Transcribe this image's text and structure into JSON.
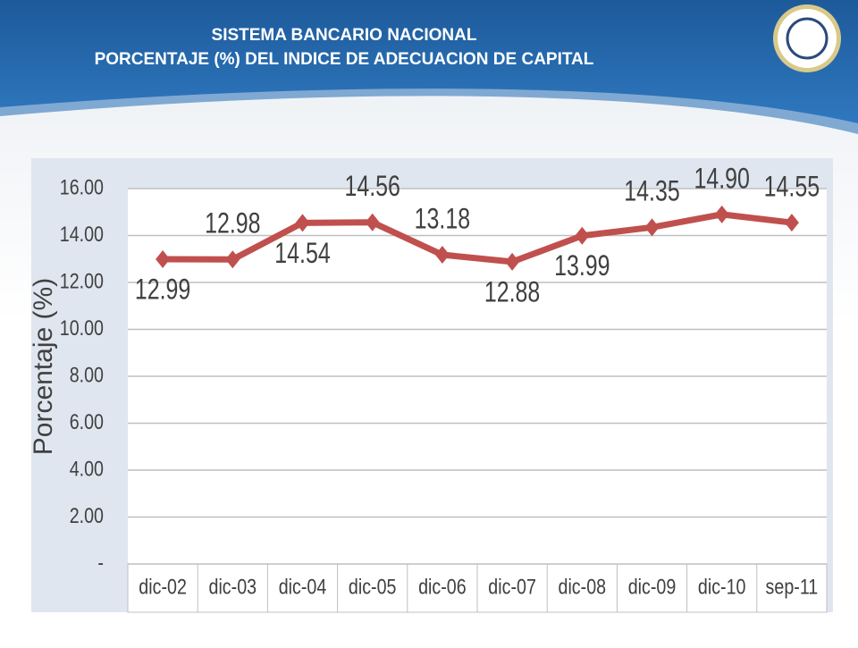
{
  "title_lines": [
    "SISTEMA BANCARIO NACIONAL",
    "PORCENTAJE (%) DEL INDICE DE ADECUACION DE CAPITAL"
  ],
  "chart_data": {
    "type": "line",
    "y_label": "Porcentaje (%)",
    "categories": [
      "dic-02",
      "dic-03",
      "dic-04",
      "dic-05",
      "dic-06",
      "dic-07",
      "dic-08",
      "dic-09",
      "dic-10",
      "sep-11"
    ],
    "values": [
      12.99,
      12.98,
      14.54,
      14.56,
      13.18,
      12.88,
      13.99,
      14.35,
      14.9,
      14.55
    ],
    "value_labels": [
      "12.99",
      "12.98",
      "14.54",
      "14.56",
      "13.18",
      "12.88",
      "13.99",
      "14.35",
      "14.90",
      "14.55"
    ],
    "color": "#c0504d",
    "ylim": [
      0,
      16
    ],
    "yticks": [
      {
        "value": 0,
        "label": "-"
      },
      {
        "value": 2,
        "label": "2.00"
      },
      {
        "value": 4,
        "label": "4.00"
      },
      {
        "value": 6,
        "label": "6.00"
      },
      {
        "value": 8,
        "label": "8.00"
      },
      {
        "value": 10,
        "label": "10.00"
      },
      {
        "value": 12,
        "label": "12.00"
      },
      {
        "value": 14,
        "label": "14.00"
      },
      {
        "value": 16,
        "label": "16.00"
      }
    ],
    "grid": true
  }
}
